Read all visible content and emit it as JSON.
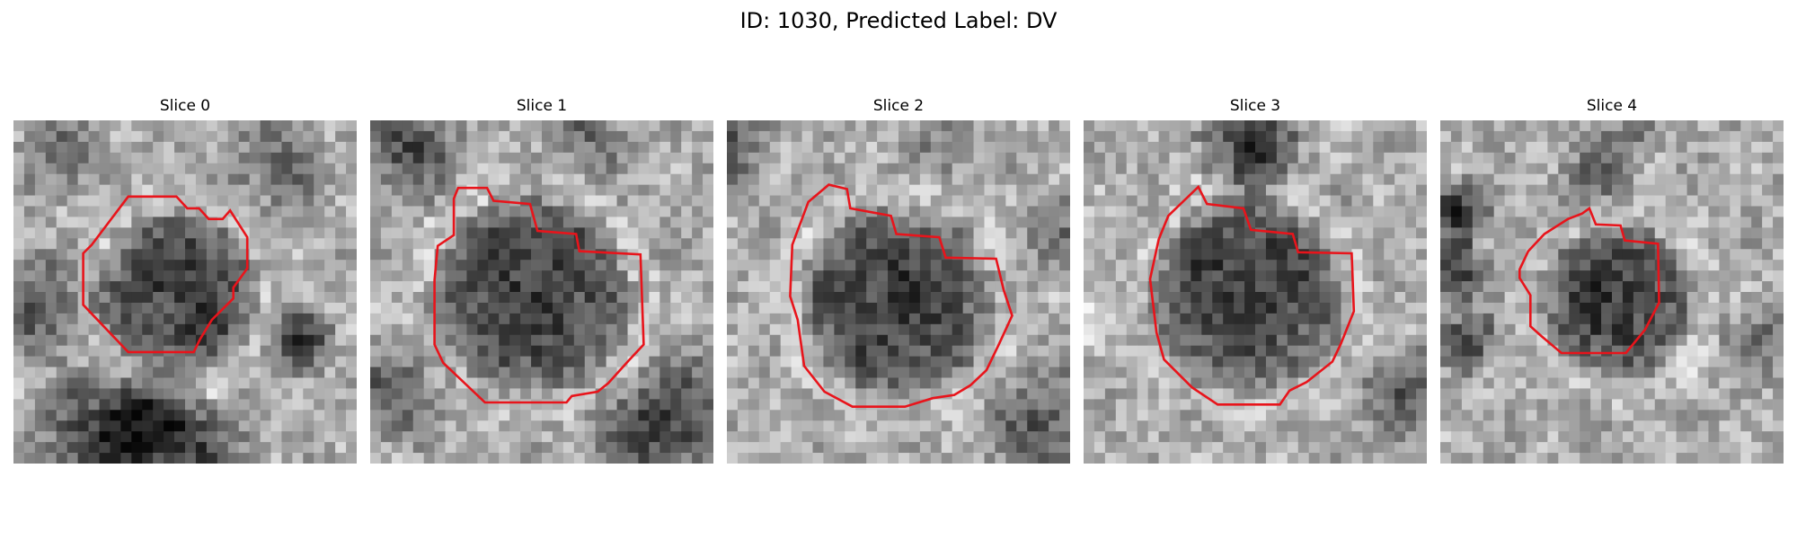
{
  "figure": {
    "title": "ID: 1030, Predicted Label: DV",
    "outline_color": "#e8141b"
  },
  "panels": [
    {
      "title": "Slice 0"
    },
    {
      "title": "Slice 1"
    },
    {
      "title": "Slice 2"
    },
    {
      "title": "Slice 3"
    },
    {
      "title": "Slice 4"
    }
  ]
}
